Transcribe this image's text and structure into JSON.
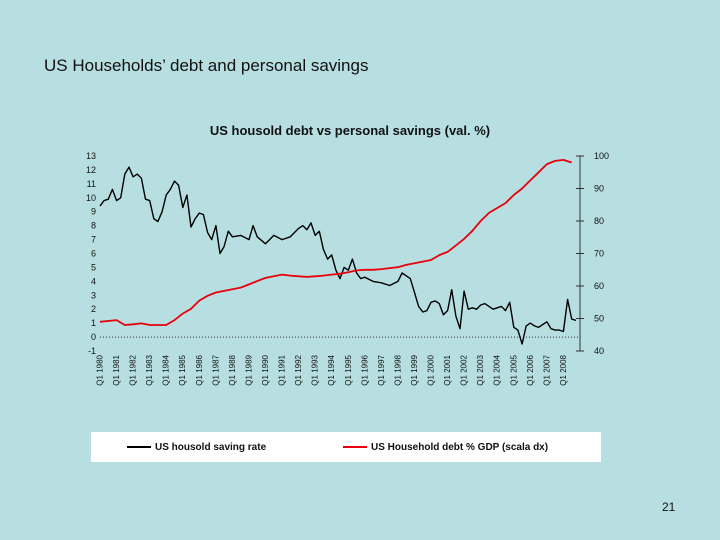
{
  "slide": {
    "title": "US Households’ debt and personal savings",
    "page_number": "21"
  },
  "chart_data": {
    "type": "line",
    "title": "US housold debt vs personal savings (val. %)",
    "xlabel": "",
    "ylabel_left": "",
    "ylabel_right": "",
    "left_axis": {
      "range": [
        -1,
        13
      ],
      "ticks": [
        "-1",
        "0",
        "1",
        "2",
        "3",
        "4",
        "5",
        "6",
        "7",
        "8",
        "9",
        "10",
        "11",
        "12",
        "13"
      ]
    },
    "right_axis": {
      "range": [
        40,
        100
      ],
      "ticks": [
        "40",
        "50",
        "60",
        "70",
        "80",
        "90",
        "100"
      ]
    },
    "x_range": [
      1980,
      2009
    ],
    "x_tick_labels": [
      "Q1 1980",
      "Q1 1981",
      "Q1 1982",
      "Q1 1983",
      "Q1 1984",
      "Q1 1985",
      "Q1 1986",
      "Q1 1987",
      "Q1 1988",
      "Q1 1989",
      "Q1 1990",
      "Q1 1991",
      "Q1 1992",
      "Q1 1993",
      "Q1 1994",
      "Q1 1995",
      "Q1 1996",
      "Q1 1997",
      "Q1 1998",
      "Q1 1999",
      "Q1 2000",
      "Q1 2001",
      "Q1 2002",
      "Q1 2003",
      "Q1 2004",
      "Q1 2005",
      "Q1 2006",
      "Q1 2007",
      "Q1 2008"
    ],
    "grid": false,
    "legend_position": "bottom",
    "series": [
      {
        "name": "US housold saving rate",
        "axis": "left",
        "color": "#000000",
        "x": [
          1980.0,
          1980.25,
          1980.5,
          1980.75,
          1981.0,
          1981.25,
          1981.5,
          1981.75,
          1982.0,
          1982.25,
          1982.5,
          1982.75,
          1983.0,
          1983.25,
          1983.5,
          1983.75,
          1984.0,
          1984.25,
          1984.5,
          1984.75,
          1985.0,
          1985.25,
          1985.5,
          1985.75,
          1986.0,
          1986.25,
          1986.5,
          1986.75,
          1987.0,
          1987.25,
          1987.5,
          1987.75,
          1988.0,
          1988.5,
          1989.0,
          1989.25,
          1989.5,
          1990.0,
          1990.5,
          1991.0,
          1991.5,
          1992.0,
          1992.25,
          1992.5,
          1992.75,
          1993.0,
          1993.25,
          1993.5,
          1993.75,
          1994.0,
          1994.25,
          1994.5,
          1994.75,
          1995.0,
          1995.25,
          1995.5,
          1995.75,
          1996.0,
          1996.5,
          1997.0,
          1997.5,
          1998.0,
          1998.25,
          1998.5,
          1998.75,
          1999.0,
          1999.25,
          1999.5,
          1999.75,
          2000.0,
          2000.25,
          2000.5,
          2000.75,
          2001.0,
          2001.25,
          2001.5,
          2001.75,
          2002.0,
          2002.25,
          2002.5,
          2002.75,
          2003.0,
          2003.25,
          2003.5,
          2003.75,
          2004.0,
          2004.25,
          2004.5,
          2004.75,
          2005.0,
          2005.25,
          2005.5,
          2005.75,
          2006.0,
          2006.25,
          2006.5,
          2006.75,
          2007.0,
          2007.25,
          2007.5,
          2007.75,
          2008.0,
          2008.25,
          2008.5,
          2008.75
        ],
        "y": [
          9.4,
          9.8,
          9.9,
          10.6,
          9.8,
          10.0,
          11.7,
          12.2,
          11.5,
          11.7,
          11.4,
          9.9,
          9.8,
          8.5,
          8.3,
          9.0,
          10.2,
          10.6,
          11.2,
          10.9,
          9.3,
          10.2,
          7.9,
          8.5,
          8.9,
          8.8,
          7.5,
          7.0,
          8.0,
          6.0,
          6.5,
          7.6,
          7.2,
          7.3,
          7.0,
          8.0,
          7.2,
          6.7,
          7.3,
          7.0,
          7.2,
          7.8,
          8.0,
          7.7,
          8.2,
          7.3,
          7.6,
          6.3,
          5.6,
          5.9,
          4.8,
          4.2,
          5.0,
          4.8,
          5.6,
          4.6,
          4.2,
          4.3,
          4.0,
          3.9,
          3.7,
          4.0,
          4.6,
          4.4,
          4.2,
          3.2,
          2.2,
          1.8,
          1.9,
          2.5,
          2.6,
          2.4,
          1.6,
          1.9,
          3.4,
          1.5,
          0.6,
          3.3,
          2.0,
          2.1,
          2.0,
          2.3,
          2.4,
          2.2,
          2.0,
          2.1,
          2.2,
          1.9,
          2.5,
          0.7,
          0.5,
          -0.5,
          0.8,
          1.0,
          0.8,
          0.7,
          0.9,
          1.1,
          0.6,
          0.5,
          0.5,
          0.4,
          2.7,
          1.3,
          1.2
        ]
      },
      {
        "name": "US Household debt % GDP (scala dx)",
        "axis": "right",
        "color": "#e8000b",
        "x": [
          1980.0,
          1981.0,
          1981.5,
          1982.0,
          1982.5,
          1983.0,
          1983.5,
          1984.0,
          1984.5,
          1985.0,
          1985.5,
          1986.0,
          1986.5,
          1987.0,
          1987.5,
          1988.0,
          1988.5,
          1989.0,
          1989.5,
          1990.0,
          1990.5,
          1991.0,
          1991.5,
          1992.0,
          1992.5,
          1993.0,
          1993.5,
          1994.0,
          1994.5,
          1995.0,
          1995.5,
          1996.0,
          1996.5,
          1997.0,
          1997.5,
          1998.0,
          1998.5,
          1999.0,
          1999.5,
          2000.0,
          2000.5,
          2001.0,
          2001.5,
          2002.0,
          2002.5,
          2003.0,
          2003.5,
          2004.0,
          2004.5,
          2005.0,
          2005.5,
          2006.0,
          2006.5,
          2007.0,
          2007.5,
          2008.0,
          2008.5
        ],
        "y": [
          49.0,
          49.5,
          48.0,
          48.2,
          48.5,
          48.0,
          48.0,
          48.0,
          49.5,
          51.5,
          53.0,
          55.5,
          57.0,
          58.0,
          58.5,
          59.0,
          59.5,
          60.5,
          61.5,
          62.5,
          63.0,
          63.5,
          63.2,
          63.0,
          62.8,
          63.0,
          63.2,
          63.5,
          63.8,
          64.2,
          64.8,
          65.0,
          65.0,
          65.2,
          65.5,
          65.8,
          66.5,
          67.0,
          67.5,
          68.0,
          69.5,
          70.5,
          72.5,
          74.5,
          77.0,
          80.0,
          82.5,
          84.0,
          85.5,
          88.0,
          90.0,
          92.5,
          95.0,
          97.5,
          98.5,
          98.8,
          98.0
        ]
      }
    ]
  }
}
